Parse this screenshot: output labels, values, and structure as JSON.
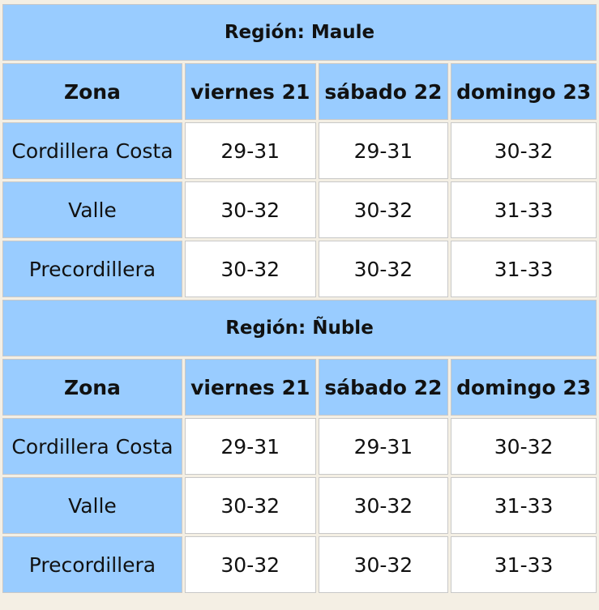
{
  "tables": [
    {
      "title": "Región: Maule",
      "header": [
        "Zona",
        "viernes 21",
        "sábado 22",
        "domingo 23"
      ],
      "rows": [
        [
          "Cordillera Costa",
          "29-31",
          "29-31",
          "30-32"
        ],
        [
          "Valle",
          "30-32",
          "30-32",
          "31-33"
        ],
        [
          "Precordillera",
          "30-32",
          "30-32",
          "31-33"
        ]
      ]
    },
    {
      "title": "Región: Ñuble",
      "header": [
        "Zona",
        "viernes 21",
        "sábado 22",
        "domingo 23"
      ],
      "rows": [
        [
          "Cordillera Costa",
          "29-31",
          "29-31",
          "30-32"
        ],
        [
          "Valle",
          "30-32",
          "30-32",
          "31-33"
        ],
        [
          "Precordillera",
          "30-32",
          "30-32",
          "31-33"
        ]
      ]
    }
  ]
}
